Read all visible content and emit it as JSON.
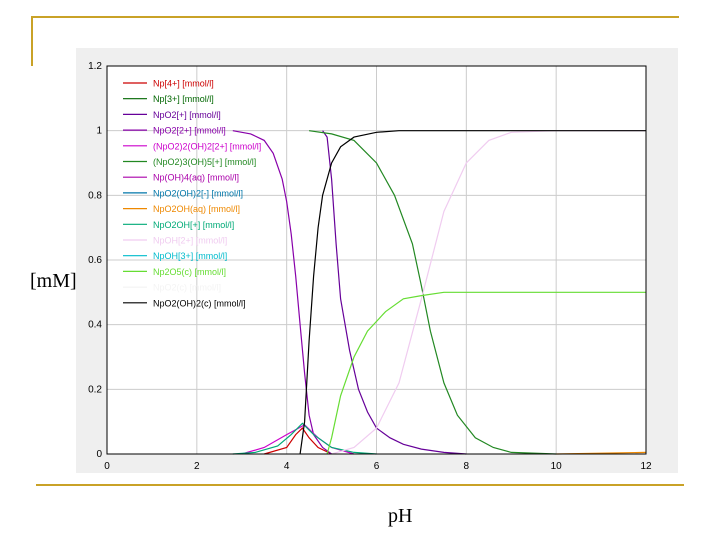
{
  "chart_data": {
    "type": "line",
    "xlabel": "pH",
    "ylabel": "[mM]",
    "xlim": [
      0,
      12
    ],
    "ylim": [
      0,
      1.2
    ],
    "xticks": [
      0,
      2,
      4,
      6,
      8,
      10,
      12
    ],
    "yticks": [
      0,
      0.2,
      0.4,
      0.6,
      0.8,
      1,
      1.2
    ],
    "ytick_labels": [
      "0",
      "0.2",
      "0.4",
      "0.6",
      "0.8",
      "1",
      "1.2"
    ],
    "grid": true,
    "legend_position": "top-left",
    "series": [
      {
        "name": "Np[4+] [mmol/l]",
        "color": "#cc0000",
        "points": [
          [
            3.5,
            0
          ],
          [
            4.0,
            0.02
          ],
          [
            4.2,
            0.06
          ],
          [
            4.35,
            0.08
          ],
          [
            4.5,
            0.05
          ],
          [
            4.7,
            0.02
          ],
          [
            5.0,
            0
          ]
        ]
      },
      {
        "name": "Np[3+] [mmol/l]",
        "color": "#006600",
        "points": []
      },
      {
        "name": "NpO2[+] [mmol/l]",
        "color": "#660099",
        "points": [
          [
            4.8,
            1.0
          ],
          [
            4.9,
            0.98
          ],
          [
            5.0,
            0.85
          ],
          [
            5.1,
            0.65
          ],
          [
            5.2,
            0.48
          ],
          [
            5.4,
            0.32
          ],
          [
            5.6,
            0.2
          ],
          [
            5.8,
            0.13
          ],
          [
            6.0,
            0.08
          ],
          [
            6.3,
            0.05
          ],
          [
            6.6,
            0.03
          ],
          [
            7.0,
            0.015
          ],
          [
            7.5,
            0.005
          ],
          [
            8.0,
            0
          ]
        ]
      },
      {
        "name": "NpO2[2+] [mmol/l]",
        "color": "#8800aa",
        "points": [
          [
            2.8,
            1.0
          ],
          [
            3.2,
            0.99
          ],
          [
            3.5,
            0.97
          ],
          [
            3.7,
            0.93
          ],
          [
            3.9,
            0.85
          ],
          [
            4.0,
            0.78
          ],
          [
            4.1,
            0.68
          ],
          [
            4.2,
            0.55
          ],
          [
            4.3,
            0.4
          ],
          [
            4.4,
            0.25
          ],
          [
            4.5,
            0.12
          ],
          [
            4.6,
            0.06
          ],
          [
            4.8,
            0.02
          ],
          [
            5.0,
            0
          ]
        ]
      },
      {
        "name": "(NpO2)2(OH)2[2+] [mmol/l]",
        "color": "#cc00cc",
        "points": [
          [
            3.0,
            0
          ],
          [
            3.5,
            0.02
          ],
          [
            4.0,
            0.06
          ],
          [
            4.4,
            0.09
          ],
          [
            4.7,
            0.05
          ],
          [
            5.0,
            0.02
          ],
          [
            5.5,
            0
          ]
        ]
      },
      {
        "name": "(NpO2)3(OH)5[+] [mmol/l]",
        "color": "#228822",
        "points": [
          [
            4.5,
            1.0
          ],
          [
            5.0,
            0.99
          ],
          [
            5.5,
            0.97
          ],
          [
            6.0,
            0.9
          ],
          [
            6.4,
            0.8
          ],
          [
            6.8,
            0.65
          ],
          [
            7.0,
            0.52
          ],
          [
            7.2,
            0.38
          ],
          [
            7.5,
            0.22
          ],
          [
            7.8,
            0.12
          ],
          [
            8.2,
            0.05
          ],
          [
            8.6,
            0.02
          ],
          [
            9.0,
            0.005
          ],
          [
            10.0,
            0
          ]
        ]
      },
      {
        "name": "Np(OH)4(aq) [mmol/l]",
        "color": "#aa00aa",
        "points": []
      },
      {
        "name": "NpO2(OH)2[-] [mmol/l]",
        "color": "#0077aa",
        "points": []
      },
      {
        "name": "NpO2OH(aq) [mmol/l]",
        "color": "#ee8800",
        "points": [
          [
            10.0,
            0
          ],
          [
            12.0,
            0.005
          ]
        ]
      },
      {
        "name": "NpO2OH[+] [mmol/l]",
        "color": "#00aa77",
        "points": [
          [
            2.8,
            0
          ],
          [
            3.3,
            0.005
          ],
          [
            3.8,
            0.025
          ],
          [
            4.1,
            0.06
          ],
          [
            4.35,
            0.095
          ],
          [
            4.6,
            0.06
          ],
          [
            5.0,
            0.02
          ],
          [
            5.5,
            0.005
          ],
          [
            6.0,
            0
          ]
        ]
      },
      {
        "name": "NpOH[2+] [mmol/l]",
        "color": "#f0ccf0",
        "points": [
          [
            5.0,
            0
          ],
          [
            5.5,
            0.02
          ],
          [
            6.0,
            0.08
          ],
          [
            6.5,
            0.22
          ],
          [
            7.0,
            0.48
          ],
          [
            7.5,
            0.75
          ],
          [
            8.0,
            0.9
          ],
          [
            8.5,
            0.97
          ],
          [
            9.0,
            0.995
          ],
          [
            10.0,
            1.0
          ],
          [
            12.0,
            1.0
          ]
        ]
      },
      {
        "name": "NpOH[3+] [mmol/l]",
        "color": "#00bbcc",
        "points": []
      },
      {
        "name": "Np2O5(c) [mmol/l]",
        "color": "#66dd33",
        "points": [
          [
            4.9,
            0
          ],
          [
            5.0,
            0.05
          ],
          [
            5.2,
            0.18
          ],
          [
            5.5,
            0.3
          ],
          [
            5.8,
            0.38
          ],
          [
            6.2,
            0.44
          ],
          [
            6.6,
            0.48
          ],
          [
            7.0,
            0.49
          ],
          [
            7.5,
            0.5
          ],
          [
            12.0,
            0.5
          ]
        ]
      },
      {
        "name": "NpO2(c) [mmol/l]",
        "color": "#f4f4f4",
        "points": []
      },
      {
        "name": "NpO2(OH)2(c) [mmol/l]",
        "color": "#000000",
        "points": [
          [
            4.3,
            0
          ],
          [
            4.4,
            0.1
          ],
          [
            4.5,
            0.35
          ],
          [
            4.6,
            0.55
          ],
          [
            4.7,
            0.7
          ],
          [
            4.8,
            0.8
          ],
          [
            5.0,
            0.9
          ],
          [
            5.2,
            0.95
          ],
          [
            5.5,
            0.98
          ],
          [
            6.0,
            0.995
          ],
          [
            6.5,
            1.0
          ],
          [
            12.0,
            1.0
          ]
        ]
      }
    ]
  }
}
